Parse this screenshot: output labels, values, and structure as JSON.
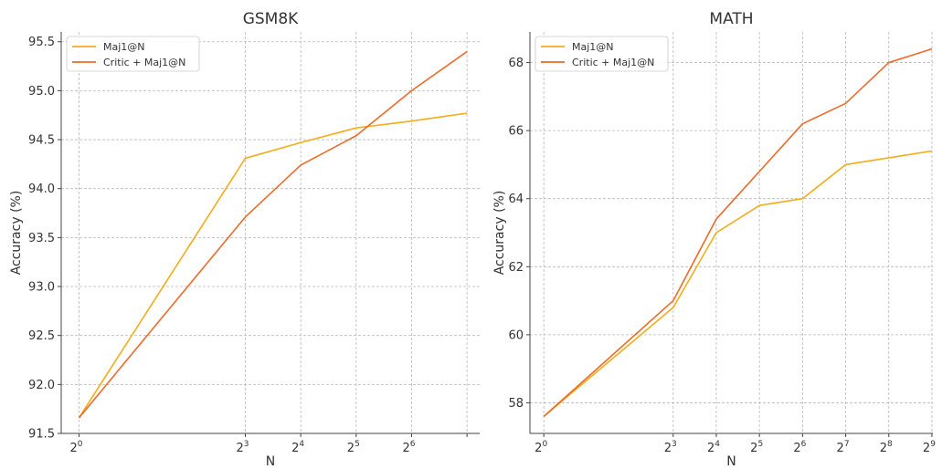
{
  "chart_data": [
    {
      "type": "line",
      "title": "GSM8K",
      "xlabel": "N",
      "ylabel": "Accuracy (%)",
      "x_scale": "log2",
      "x": [
        1,
        8,
        16,
        32,
        64,
        128
      ],
      "x_ticks": [
        {
          "value": 1,
          "base": "2",
          "exp": "0"
        },
        {
          "value": 8,
          "base": "2",
          "exp": "3"
        },
        {
          "value": 16,
          "base": "2",
          "exp": "4"
        },
        {
          "value": 32,
          "base": "2",
          "exp": "5"
        },
        {
          "value": 64,
          "base": "2",
          "exp": "6"
        },
        {
          "value": 128,
          "base": "",
          "exp": ""
        }
      ],
      "xlim": [
        0.8,
        150
      ],
      "ylim": [
        91.5,
        95.6
      ],
      "y_ticks": [
        "91.5",
        "92.0",
        "92.5",
        "93.0",
        "93.5",
        "94.0",
        "94.5",
        "95.0",
        "95.5"
      ],
      "grid": true,
      "legend_position": "top-left",
      "series": [
        {
          "name": "Maj1@N",
          "color": "#f5ac1b",
          "values": [
            91.66,
            94.31,
            94.47,
            94.62,
            94.69,
            94.77
          ]
        },
        {
          "name": "Critic + Maj1@N",
          "color": "#ed6a28",
          "values": [
            91.66,
            93.71,
            94.24,
            94.54,
            95.0,
            95.4
          ]
        }
      ]
    },
    {
      "type": "line",
      "title": "MATH",
      "xlabel": "N",
      "ylabel": "Accuracy (%)",
      "x_scale": "log2",
      "x": [
        1,
        8,
        16,
        32,
        64,
        128,
        256,
        512
      ],
      "x_ticks": [
        {
          "value": 1,
          "base": "2",
          "exp": "0"
        },
        {
          "value": 8,
          "base": "2",
          "exp": "3"
        },
        {
          "value": 16,
          "base": "2",
          "exp": "4"
        },
        {
          "value": 32,
          "base": "2",
          "exp": "5"
        },
        {
          "value": 64,
          "base": "2",
          "exp": "6"
        },
        {
          "value": 128,
          "base": "2",
          "exp": "7"
        },
        {
          "value": 256,
          "base": "2",
          "exp": "8"
        },
        {
          "value": 512,
          "base": "2",
          "exp": "9"
        }
      ],
      "xlim": [
        0.8,
        520
      ],
      "ylim": [
        57.1,
        68.9
      ],
      "y_ticks": [
        "58",
        "60",
        "62",
        "64",
        "66",
        "68"
      ],
      "grid": true,
      "legend_position": "top-left",
      "series": [
        {
          "name": "Maj1@N",
          "color": "#f5ac1b",
          "values": [
            57.6,
            60.8,
            63.0,
            63.8,
            64.0,
            65.0,
            65.2,
            65.4
          ]
        },
        {
          "name": "Critic + Maj1@N",
          "color": "#ed6a28",
          "values": [
            57.6,
            61.0,
            63.4,
            64.8,
            66.2,
            66.8,
            68.0,
            68.4
          ]
        }
      ]
    }
  ]
}
